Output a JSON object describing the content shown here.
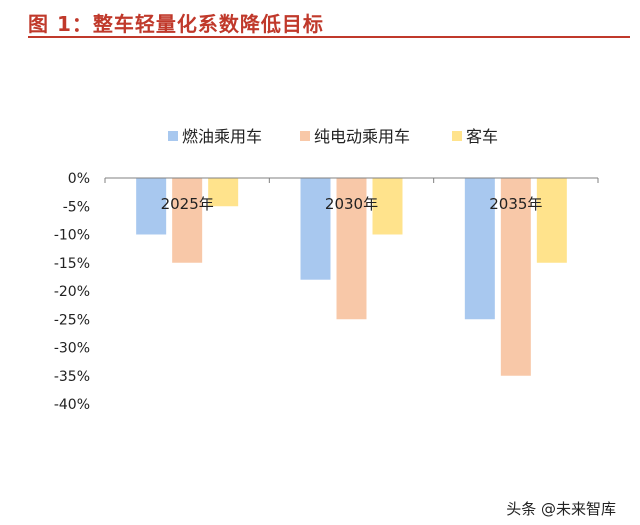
{
  "header": {
    "title": "图 1：整车轻量化系数降低目标"
  },
  "watermark": "头条 @未来智库",
  "colors": {
    "title_red": "#c0392b",
    "series": [
      "#a8c8ef",
      "#f8c8a8",
      "#ffe38c"
    ],
    "axis": "#808080"
  },
  "chart_data": {
    "type": "bar",
    "title": "",
    "xlabel": "",
    "ylabel": "",
    "categories": [
      "2025年",
      "2030年",
      "2035年"
    ],
    "series": [
      {
        "name": "燃油乘用车",
        "values": [
          -10,
          -18,
          -25
        ]
      },
      {
        "name": "纯电动乘用车",
        "values": [
          -15,
          -25,
          -35
        ]
      },
      {
        "name": "客车",
        "values": [
          -5,
          -10,
          -15
        ]
      }
    ],
    "ylim": [
      -40,
      0
    ],
    "yticks": [
      0,
      -5,
      -10,
      -15,
      -20,
      -25,
      -30,
      -35,
      -40
    ],
    "yticklabels": [
      "0%",
      "-5%",
      "-10%",
      "-15%",
      "-20%",
      "-25%",
      "-30%",
      "-35%",
      "-40%"
    ],
    "legend": "top",
    "grid": false
  }
}
